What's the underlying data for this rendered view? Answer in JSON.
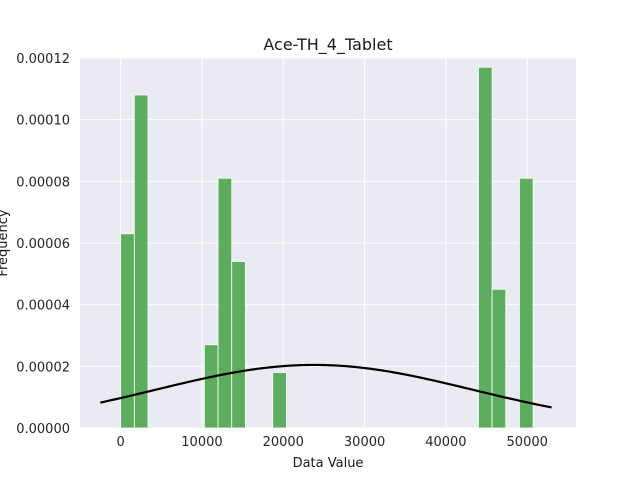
{
  "chart_data": {
    "type": "bar",
    "title": "Ace-TH_4_Tablet",
    "xlabel": "Data Value",
    "ylabel": "Frequency",
    "xlim": [
      -5000,
      56000
    ],
    "ylim": [
      0,
      0.00012
    ],
    "x_ticks": [
      0,
      10000,
      20000,
      30000,
      40000,
      50000
    ],
    "x_tick_labels": [
      "0",
      "10000",
      "20000",
      "30000",
      "40000",
      "50000"
    ],
    "y_ticks": [
      0,
      2e-05,
      4e-05,
      6e-05,
      8e-05,
      0.0001,
      0.00012
    ],
    "y_tick_labels": [
      "0.00000",
      "0.00002",
      "0.00004",
      "0.00006",
      "0.00008",
      "0.00010",
      "0.00012"
    ],
    "grid": true,
    "bar_color": "#4da64d",
    "curve_color": "#000000",
    "background_color": "#eaeaf2",
    "bins": [
      {
        "x0": 0,
        "x1": 1680,
        "value": 6.3e-05
      },
      {
        "x0": 1680,
        "x1": 3360,
        "value": 0.000108
      },
      {
        "x0": 10300,
        "x1": 11980,
        "value": 2.7e-05
      },
      {
        "x0": 11980,
        "x1": 13660,
        "value": 8.1e-05
      },
      {
        "x0": 13660,
        "x1": 15340,
        "value": 5.4e-05
      },
      {
        "x0": 18700,
        "x1": 20380,
        "value": 1.8e-05
      },
      {
        "x0": 44000,
        "x1": 45680,
        "value": 0.000117
      },
      {
        "x0": 45680,
        "x1": 47360,
        "value": 4.5e-05
      },
      {
        "x0": 49040,
        "x1": 50720,
        "value": 8.1e-05
      }
    ],
    "curve": {
      "type": "normal_pdf",
      "mean": 23800,
      "std": 19500,
      "x_range": [
        -2500,
        53000
      ]
    }
  }
}
